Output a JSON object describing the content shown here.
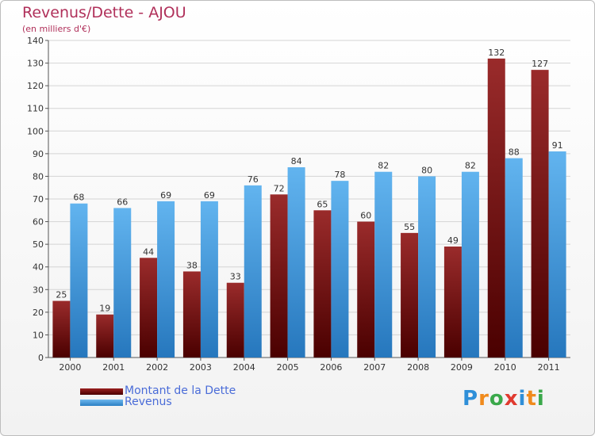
{
  "chart_data": {
    "type": "bar",
    "title": "Revenus/Dette - AJOU",
    "subtitle": "(en milliers d'€)",
    "categories": [
      "2000",
      "2001",
      "2002",
      "2003",
      "2004",
      "2005",
      "2006",
      "2007",
      "2008",
      "2009",
      "2010",
      "2011"
    ],
    "series": [
      {
        "name": "Montant de la Dette",
        "values": [
          25,
          19,
          44,
          38,
          33,
          72,
          65,
          60,
          55,
          49,
          132,
          127
        ],
        "color": "#7a1010"
      },
      {
        "name": "Revenus",
        "values": [
          68,
          66,
          69,
          69,
          76,
          84,
          78,
          82,
          80,
          82,
          88,
          91
        ],
        "color": "#4aa3e3"
      }
    ],
    "ylim": [
      0,
      140
    ],
    "yticks": [
      0,
      10,
      20,
      30,
      40,
      50,
      60,
      70,
      80,
      90,
      100,
      110,
      120,
      130,
      140
    ],
    "grid": true,
    "legend": "bottom-left"
  },
  "legend": {
    "debt_label": "Montant de la Dette",
    "revenue_label": "Revenus"
  },
  "brand": {
    "letters": [
      "P",
      "r",
      "o",
      "x",
      "i",
      "t",
      "i"
    ],
    "colors": [
      "#2f8fd8",
      "#f08a1c",
      "#3aa84a",
      "#e03a2f",
      "#2f8fd8",
      "#f08a1c",
      "#3aa84a"
    ]
  }
}
